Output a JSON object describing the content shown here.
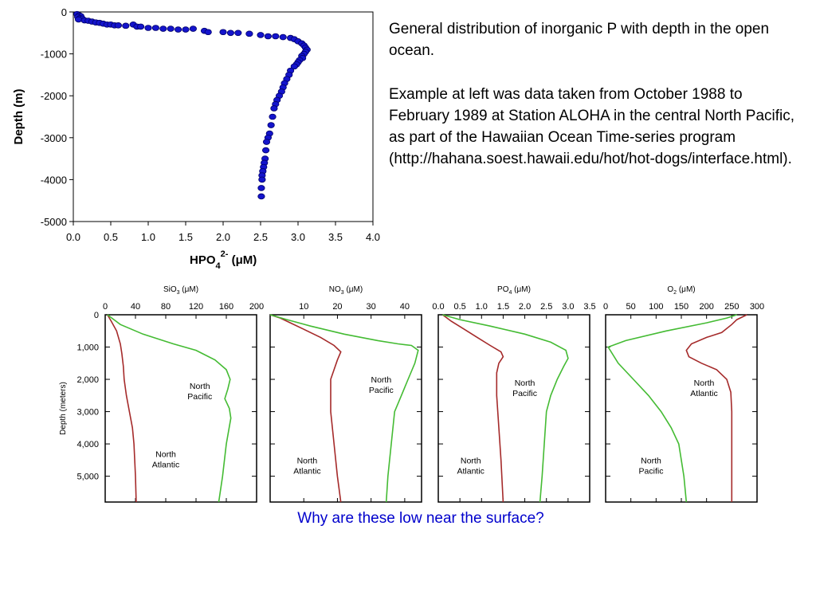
{
  "text": {
    "paragraph1": "General distribution of inorganic P with depth in the open ocean.",
    "paragraph2": "Example at left was data taken from October 1988 to February 1989 at Station ALOHA in the central North Pacific, as part of the Hawaiian Ocean Time-series program (http://hahana.soest.hawaii.edu/hot/hot-dogs/interface.html).",
    "caption": "Why are these low near the surface?"
  },
  "chart_data": [
    {
      "type": "scatter",
      "xlabel": {
        "base": "HPO",
        "sub": "4",
        "sup": "2-",
        "unit": "(μM)"
      },
      "ylabel": "Depth (m)",
      "xlim": [
        0,
        4
      ],
      "ylim": [
        -5000,
        0
      ],
      "xticks": [
        0,
        0.5,
        1,
        1.5,
        2,
        2.5,
        3,
        3.5,
        4
      ],
      "xtick_labels": [
        "0.0",
        "0.5",
        "1.0",
        "1.5",
        "2.0",
        "2.5",
        "3.0",
        "3.5",
        "4.0"
      ],
      "yticks": [
        0,
        -1000,
        -2000,
        -3000,
        -4000,
        -5000
      ],
      "ytick_labels": [
        "0",
        "-1000",
        "-2000",
        "-3000",
        "-4000",
        "-5000"
      ],
      "marker_color": "#1414cc",
      "grid": false,
      "x": [
        0.05,
        0.08,
        0.1,
        0.06,
        0.09,
        0.12,
        0.07,
        0.15,
        0.2,
        0.25,
        0.3,
        0.35,
        0.4,
        0.45,
        0.5,
        0.55,
        0.6,
        0.7,
        0.8,
        0.85,
        0.9,
        1.0,
        1.1,
        1.2,
        1.3,
        1.4,
        1.5,
        1.6,
        1.75,
        1.8,
        2.0,
        2.1,
        2.2,
        2.35,
        2.5,
        2.6,
        2.7,
        2.8,
        2.9,
        2.95,
        3.0,
        3.05,
        3.08,
        3.1,
        3.12,
        3.1,
        3.08,
        3.05,
        3.06,
        3.02,
        3.0,
        2.98,
        2.95,
        2.9,
        2.88,
        2.85,
        2.82,
        2.8,
        2.78,
        2.75,
        2.72,
        2.7,
        2.68,
        2.66,
        2.64,
        2.62,
        2.6,
        2.58,
        2.57,
        2.56,
        2.55,
        2.54,
        2.53,
        2.52,
        2.52,
        2.51,
        2.51
      ],
      "y": [
        -50,
        -80,
        -100,
        -120,
        -150,
        -160,
        -180,
        -200,
        -210,
        -230,
        -250,
        -260,
        -280,
        -300,
        -300,
        -320,
        -320,
        -330,
        -300,
        -350,
        -350,
        -380,
        -380,
        -400,
        -400,
        -420,
        -420,
        -400,
        -450,
        -480,
        -480,
        -500,
        -500,
        -520,
        -550,
        -580,
        -580,
        -600,
        -620,
        -650,
        -700,
        -750,
        -800,
        -850,
        -900,
        -950,
        -1000,
        -1050,
        -1100,
        -1150,
        -1200,
        -1250,
        -1300,
        -1400,
        -1500,
        -1600,
        -1700,
        -1800,
        -1900,
        -2000,
        -2100,
        -2200,
        -2300,
        -2500,
        -2700,
        -2900,
        -3000,
        -3100,
        -3300,
        -3500,
        -3600,
        -3700,
        -3800,
        -3900,
        -4000,
        -4200,
        -4400
      ]
    },
    {
      "type": "line",
      "top_label": {
        "base": "SiO",
        "sub": "3",
        "unit": "(μM)"
      },
      "xlim": [
        0,
        200
      ],
      "xtick_labels": [
        "0",
        "40",
        "80",
        "120",
        "160",
        "200"
      ],
      "xticks": [
        0,
        40,
        80,
        120,
        160,
        200
      ],
      "ylabel": "Depth (meters)",
      "ylim": [
        0,
        5800
      ],
      "ytick_labels": [
        "0",
        "1,000",
        "2,000",
        "3,000",
        "4,000",
        "5,000"
      ],
      "yticks": [
        0,
        1000,
        2000,
        3000,
        4000,
        5000
      ],
      "series": [
        {
          "name": "North Atlantic",
          "color": "#a52a2a",
          "label_pos": [
            80,
            4400
          ],
          "x": [
            3,
            8,
            15,
            20,
            22,
            24,
            25,
            28,
            32,
            36,
            38,
            40,
            41
          ],
          "y": [
            0,
            200,
            500,
            900,
            1200,
            1600,
            2000,
            2500,
            3000,
            3500,
            4000,
            5000,
            5800
          ]
        },
        {
          "name": "North Pacific",
          "color": "#44bb33",
          "label_pos": [
            125,
            2300
          ],
          "x": [
            3,
            20,
            50,
            90,
            120,
            145,
            160,
            165,
            162,
            158,
            164,
            166,
            160,
            155,
            150
          ],
          "y": [
            0,
            300,
            600,
            900,
            1100,
            1400,
            1700,
            2000,
            2300,
            2600,
            2900,
            3200,
            4000,
            5000,
            5800
          ]
        }
      ]
    },
    {
      "type": "line",
      "top_label": {
        "base": "NO",
        "sub": "3",
        "unit": "(μM)"
      },
      "xlim": [
        0,
        45
      ],
      "xtick_labels": [
        "10",
        "20",
        "30",
        "40"
      ],
      "xticks": [
        10,
        20,
        30,
        40
      ],
      "ylim": [
        0,
        5800
      ],
      "yticks": [
        0,
        1000,
        2000,
        3000,
        4000,
        5000
      ],
      "series": [
        {
          "name": "North Atlantic",
          "color": "#a52a2a",
          "label_pos": [
            11,
            4600
          ],
          "x": [
            0,
            3,
            6,
            10,
            15,
            19,
            21,
            20,
            19,
            18,
            18,
            19,
            20,
            21
          ],
          "y": [
            0,
            100,
            250,
            450,
            700,
            950,
            1150,
            1400,
            1700,
            2000,
            3000,
            4000,
            5000,
            5800
          ]
        },
        {
          "name": "North Pacific",
          "color": "#44bb33",
          "label_pos": [
            33,
            2100
          ],
          "x": [
            0,
            5,
            12,
            22,
            32,
            38,
            42,
            44,
            43,
            41,
            39,
            37,
            36,
            35,
            34.5
          ],
          "y": [
            0,
            150,
            350,
            600,
            800,
            900,
            950,
            1100,
            1500,
            2000,
            2500,
            3000,
            4000,
            5000,
            5800
          ]
        }
      ]
    },
    {
      "type": "line",
      "top_label": {
        "base": "PO",
        "sub": "4",
        "unit": "(μM)"
      },
      "xlim": [
        0,
        3.5
      ],
      "xtick_labels": [
        "0.0",
        "0.5",
        "1.0",
        "1.5",
        "2.0",
        "2.5",
        "3.0",
        "3.5"
      ],
      "xticks": [
        0,
        0.5,
        1,
        1.5,
        2,
        2.5,
        3,
        3.5
      ],
      "ylim": [
        0,
        5800
      ],
      "yticks": [
        0,
        1000,
        2000,
        3000,
        4000,
        5000
      ],
      "series": [
        {
          "name": "North Atlantic",
          "color": "#a52a2a",
          "label_pos": [
            0.75,
            4600
          ],
          "x": [
            0.1,
            0.3,
            0.6,
            0.9,
            1.2,
            1.45,
            1.5,
            1.4,
            1.35,
            1.35,
            1.4,
            1.45,
            1.5
          ],
          "y": [
            0,
            200,
            450,
            700,
            950,
            1150,
            1300,
            1500,
            1800,
            2500,
            3500,
            4500,
            5800
          ]
        },
        {
          "name": "North Pacific",
          "color": "#44bb33",
          "label_pos": [
            2.0,
            2200
          ],
          "x": [
            0.1,
            0.5,
            1.2,
            2.0,
            2.6,
            2.95,
            3.0,
            2.9,
            2.75,
            2.6,
            2.5,
            2.45,
            2.4,
            2.35
          ],
          "y": [
            0,
            150,
            350,
            600,
            850,
            1100,
            1350,
            1600,
            2000,
            2500,
            3000,
            4000,
            5000,
            5800
          ]
        }
      ]
    },
    {
      "type": "line",
      "top_label": {
        "base": "O",
        "sub": "2",
        "unit": "(μM)"
      },
      "xlim": [
        0,
        300
      ],
      "xtick_labels": [
        "0",
        "50",
        "100",
        "150",
        "200",
        "250",
        "300"
      ],
      "xticks": [
        0,
        50,
        100,
        150,
        200,
        250,
        300
      ],
      "ylim": [
        0,
        5800
      ],
      "yticks": [
        0,
        1000,
        2000,
        3000,
        4000,
        5000
      ],
      "series": [
        {
          "name": "North Atlantic",
          "color": "#a52a2a",
          "label_pos": [
            195,
            2200
          ],
          "x": [
            280,
            260,
            250,
            230,
            200,
            170,
            160,
            165,
            190,
            220,
            240,
            248,
            250,
            250,
            250
          ],
          "y": [
            0,
            150,
            300,
            550,
            700,
            900,
            1100,
            1300,
            1500,
            1700,
            2000,
            2400,
            3000,
            4000,
            5800
          ]
        },
        {
          "name": "North Pacific",
          "color": "#44bb33",
          "label_pos": [
            90,
            4600
          ],
          "x": [
            260,
            240,
            200,
            120,
            40,
            5,
            25,
            55,
            85,
            110,
            130,
            145,
            155,
            160
          ],
          "y": [
            0,
            100,
            250,
            500,
            800,
            1000,
            1500,
            2000,
            2500,
            3000,
            3500,
            4000,
            5000,
            5800
          ]
        }
      ]
    }
  ]
}
